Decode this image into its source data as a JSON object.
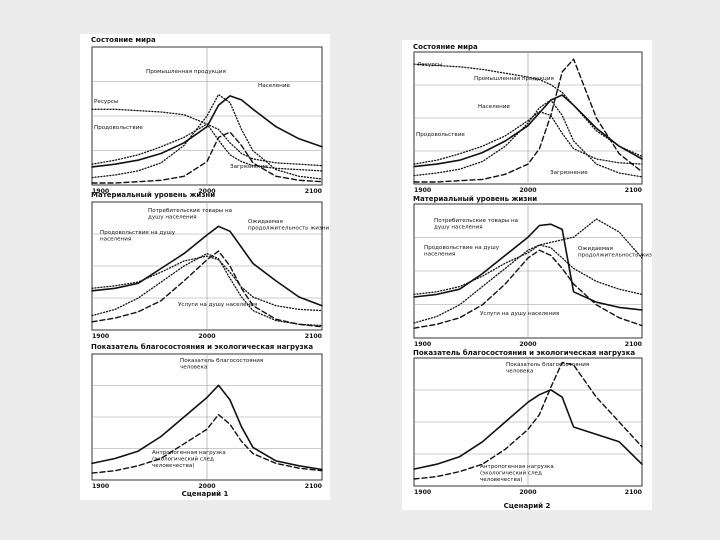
{
  "scenarios": [
    {
      "id": "s1",
      "title": "Сценарий 1",
      "panels": [
        {
          "key": "state",
          "title": "Состояние мира",
          "x_ticks": [
            "1900",
            "2000",
            "2100"
          ],
          "labels": [
            "Промышленная продукция",
            "Население",
            "Ресурсы",
            "Продовольствие",
            "Загрязнение"
          ]
        },
        {
          "key": "material",
          "title": "Материальный уровень жизни",
          "x_ticks": [
            "1900",
            "2000",
            "2100"
          ],
          "labels": [
            "Потребительские товары на душу населения",
            "Продовольствие на душу населения",
            "Ожидаемая продолжительность жизни",
            "Услуги на душу населения"
          ]
        },
        {
          "key": "welfare",
          "title": "Показатель благосостояния и экологическая нагрузка",
          "x_ticks": [
            "1900",
            "2000",
            "2100"
          ],
          "labels": [
            "Показатель благосостояния человека",
            "Антропогенная нагрузка (экологический след человечества)"
          ]
        }
      ]
    },
    {
      "id": "s2",
      "title": "Сценарий 2",
      "panels": [
        {
          "key": "state",
          "title": "Состояние мира",
          "x_ticks": [
            "1900",
            "2000",
            "2100"
          ],
          "labels": [
            "Ресурсы",
            "Промышленная продукция",
            "Население",
            "Продовольствие",
            "Загрязнение"
          ]
        },
        {
          "key": "material",
          "title": "Материальный уровень жизни",
          "x_ticks": [
            "1900",
            "2000",
            "2100"
          ],
          "labels": [
            "Потребительские товары на душу населения",
            "Продовольствие на душу населения",
            "Ожидаемая продолжительность жизни",
            "Услуги на душу населения"
          ]
        },
        {
          "key": "welfare",
          "title": "Показатель благосостояния и экологическая нагрузка",
          "x_ticks": [
            "1900",
            "2000",
            "2100"
          ],
          "labels": [
            "Показатель благосостояния человека",
            "Антропогенная нагрузка (экологический след человечества)"
          ]
        }
      ]
    }
  ],
  "chart_data": [
    {
      "type": "line",
      "panel": "s1-state",
      "x": [
        1900,
        1920,
        1940,
        1960,
        1980,
        2000,
        2010,
        2020,
        2030,
        2040,
        2060,
        2080,
        2100
      ],
      "ylim": [
        0,
        1
      ],
      "series": [
        {
          "name": "Население",
          "style": "solid",
          "values": [
            0.12,
            0.14,
            0.17,
            0.22,
            0.3,
            0.42,
            0.58,
            0.65,
            0.62,
            0.55,
            0.42,
            0.33,
            0.27
          ]
        },
        {
          "name": "Промышленная продукция",
          "style": "dotted",
          "values": [
            0.04,
            0.06,
            0.09,
            0.15,
            0.28,
            0.5,
            0.66,
            0.6,
            0.4,
            0.24,
            0.1,
            0.05,
            0.03
          ]
        },
        {
          "name": "Ресурсы",
          "style": "dotted",
          "values": [
            0.55,
            0.55,
            0.54,
            0.53,
            0.51,
            0.44,
            0.32,
            0.21,
            0.16,
            0.13,
            0.11,
            0.1,
            0.09
          ]
        },
        {
          "name": "Продовольствие",
          "style": "dotted",
          "values": [
            0.14,
            0.17,
            0.21,
            0.27,
            0.34,
            0.44,
            0.4,
            0.3,
            0.22,
            0.18,
            0.15,
            0.14,
            0.13
          ]
        },
        {
          "name": "Загрязнение",
          "style": "dashed",
          "values": [
            0.0,
            0.0,
            0.01,
            0.02,
            0.05,
            0.16,
            0.34,
            0.38,
            0.28,
            0.15,
            0.05,
            0.02,
            0.01
          ]
        }
      ]
    },
    {
      "type": "line",
      "panel": "s1-material",
      "x": [
        1900,
        1920,
        1940,
        1960,
        1980,
        2000,
        2010,
        2020,
        2030,
        2040,
        2060,
        2080,
        2100
      ],
      "ylim": [
        0,
        1
      ],
      "series": [
        {
          "name": "Ожидаемая продолжительность жизни",
          "style": "solid",
          "values": [
            0.3,
            0.32,
            0.36,
            0.48,
            0.6,
            0.75,
            0.82,
            0.78,
            0.65,
            0.52,
            0.38,
            0.25,
            0.18
          ]
        },
        {
          "name": "Продовольствие на душу населения",
          "style": "dotted",
          "values": [
            0.32,
            0.34,
            0.37,
            0.45,
            0.54,
            0.58,
            0.55,
            0.45,
            0.33,
            0.25,
            0.18,
            0.15,
            0.14
          ]
        },
        {
          "name": "Потребительские товары на душу населения",
          "style": "dotted",
          "values": [
            0.1,
            0.15,
            0.24,
            0.37,
            0.5,
            0.6,
            0.56,
            0.4,
            0.25,
            0.14,
            0.06,
            0.03,
            0.02
          ]
        },
        {
          "name": "Услуги на душу населения",
          "style": "dashed",
          "values": [
            0.05,
            0.08,
            0.13,
            0.22,
            0.38,
            0.55,
            0.62,
            0.5,
            0.32,
            0.18,
            0.07,
            0.03,
            0.01
          ]
        }
      ]
    },
    {
      "type": "line",
      "panel": "s1-welfare",
      "x": [
        1900,
        1920,
        1940,
        1960,
        1980,
        2000,
        2010,
        2020,
        2030,
        2040,
        2060,
        2080,
        2100
      ],
      "ylim": [
        0,
        1
      ],
      "series": [
        {
          "name": "Показатель благосостояния человека",
          "style": "solid",
          "values": [
            0.12,
            0.16,
            0.22,
            0.34,
            0.5,
            0.66,
            0.76,
            0.64,
            0.42,
            0.25,
            0.14,
            0.1,
            0.07
          ]
        },
        {
          "name": "Антропогенная нагрузка (экологический след человечества)",
          "style": "dashed",
          "values": [
            0.04,
            0.06,
            0.1,
            0.16,
            0.28,
            0.4,
            0.52,
            0.44,
            0.3,
            0.2,
            0.12,
            0.08,
            0.06
          ]
        }
      ]
    },
    {
      "type": "line",
      "panel": "s2-state",
      "x": [
        1900,
        1920,
        1940,
        1960,
        1980,
        2000,
        2010,
        2020,
        2030,
        2040,
        2060,
        2080,
        2100
      ],
      "ylim": [
        0,
        1
      ],
      "series": [
        {
          "name": "Население",
          "style": "solid",
          "values": [
            0.12,
            0.14,
            0.17,
            0.23,
            0.32,
            0.44,
            0.54,
            0.64,
            0.68,
            0.6,
            0.42,
            0.28,
            0.18
          ]
        },
        {
          "name": "Промышленная продукция",
          "style": "dotted",
          "values": [
            0.05,
            0.07,
            0.1,
            0.16,
            0.28,
            0.46,
            0.58,
            0.64,
            0.52,
            0.32,
            0.14,
            0.07,
            0.04
          ]
        },
        {
          "name": "Ресурсы",
          "style": "dotted",
          "values": [
            0.92,
            0.91,
            0.9,
            0.88,
            0.85,
            0.82,
            0.8,
            0.76,
            0.7,
            0.6,
            0.4,
            0.28,
            0.2
          ]
        },
        {
          "name": "Продовольствие",
          "style": "dotted",
          "values": [
            0.14,
            0.17,
            0.22,
            0.28,
            0.36,
            0.48,
            0.55,
            0.52,
            0.38,
            0.26,
            0.18,
            0.15,
            0.14
          ]
        },
        {
          "name": "Загрязнение",
          "style": "dashed",
          "values": [
            0.0,
            0.0,
            0.01,
            0.02,
            0.06,
            0.14,
            0.26,
            0.52,
            0.86,
            0.96,
            0.5,
            0.22,
            0.08
          ]
        }
      ]
    },
    {
      "type": "line",
      "panel": "s2-material",
      "x": [
        1900,
        1920,
        1940,
        1960,
        1980,
        2000,
        2010,
        2020,
        2030,
        2040,
        2060,
        2080,
        2100
      ],
      "ylim": [
        0,
        1
      ],
      "series": [
        {
          "name": "Ожидаемая продолжительность жизни",
          "style": "solid",
          "values": [
            0.3,
            0.32,
            0.36,
            0.48,
            0.62,
            0.76,
            0.85,
            0.86,
            0.82,
            0.34,
            0.26,
            0.22,
            0.2
          ]
        },
        {
          "name": "Продовольствие на душу населения",
          "style": "dotted",
          "values": [
            0.32,
            0.34,
            0.38,
            0.46,
            0.56,
            0.64,
            0.7,
            0.72,
            0.74,
            0.76,
            0.9,
            0.8,
            0.6
          ]
        },
        {
          "name": "Потребительские товары на душу населения",
          "style": "dotted",
          "values": [
            0.1,
            0.15,
            0.24,
            0.38,
            0.52,
            0.66,
            0.7,
            0.68,
            0.6,
            0.52,
            0.42,
            0.36,
            0.32
          ]
        },
        {
          "name": "Услуги на душу населения",
          "style": "dashed",
          "values": [
            0.06,
            0.09,
            0.14,
            0.24,
            0.4,
            0.6,
            0.66,
            0.62,
            0.52,
            0.4,
            0.24,
            0.14,
            0.08
          ]
        }
      ]
    },
    {
      "type": "line",
      "panel": "s2-welfare",
      "x": [
        1900,
        1920,
        1940,
        1960,
        1980,
        2000,
        2010,
        2020,
        2030,
        2040,
        2060,
        2080,
        2100
      ],
      "ylim": [
        0,
        1
      ],
      "series": [
        {
          "name": "Показатель благосостояния человека",
          "style": "solid",
          "values": [
            0.12,
            0.16,
            0.22,
            0.34,
            0.5,
            0.66,
            0.72,
            0.76,
            0.7,
            0.46,
            0.4,
            0.34,
            0.16
          ]
        },
        {
          "name": "Антропогенная нагрузка (экологический след человечества)",
          "style": "dashed",
          "values": [
            0.04,
            0.06,
            0.1,
            0.16,
            0.28,
            0.44,
            0.56,
            0.78,
            0.98,
            0.96,
            0.7,
            0.5,
            0.3
          ]
        }
      ]
    }
  ]
}
